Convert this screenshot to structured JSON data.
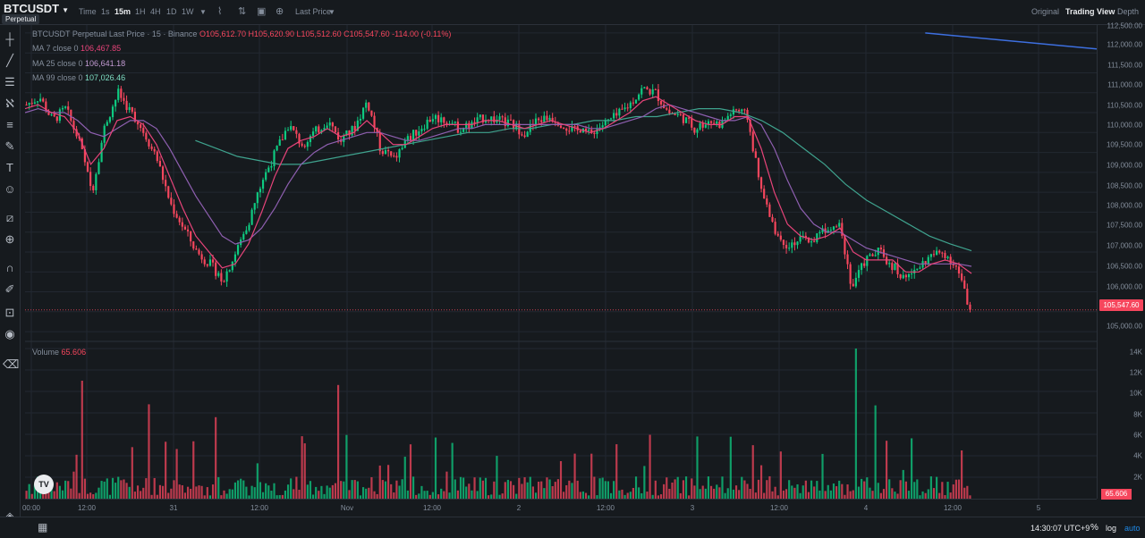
{
  "header": {
    "symbol": "BTCUSDT",
    "badge": "Perpetual",
    "timeframes": [
      {
        "label": "Time",
        "active": false
      },
      {
        "label": "1s",
        "active": false
      },
      {
        "label": "15m",
        "active": true
      },
      {
        "label": "1H",
        "active": false
      },
      {
        "label": "4H",
        "active": false
      },
      {
        "label": "1D",
        "active": false
      },
      {
        "label": "1W",
        "active": false
      }
    ],
    "price_mode": "Last Price",
    "views": [
      {
        "label": "Original",
        "active": false
      },
      {
        "label": "Trading View",
        "active": true
      },
      {
        "label": "Depth",
        "active": false
      }
    ]
  },
  "toolbar_icons": [
    "crosshair-icon",
    "trendline-icon",
    "fib-icon",
    "pattern-icon",
    "measure-lines-icon",
    "brush-icon",
    "text-icon",
    "emoji-icon",
    "ruler-icon",
    "zoom-in-icon",
    "magnet-icon",
    "lock-drawing-icon",
    "lock-icon",
    "eye-icon",
    "trash-icon"
  ],
  "legend": {
    "title": "BTCUSDT Perpetual Last Price · 15 · Binance",
    "ohlc": "O105,612.70 H105,620.90 L105,512.60 C105,547.60 -114.00 (-0.11%)",
    "ma7_label": "MA 7 close 0",
    "ma7_value": "106,467.85",
    "ma25_label": "MA 25 close 0",
    "ma25_value": "106,641.18",
    "ma99_label": "MA 99 close 0",
    "ma99_value": "107,026.46",
    "volume_label": "Volume",
    "volume_value": "65.606"
  },
  "price_axis": [
    "112,500.00",
    "112,000.00",
    "111,500.00",
    "111,000.00",
    "110,500.00",
    "110,000.00",
    "109,500.00",
    "109,000.00",
    "108,500.00",
    "108,000.00",
    "107,500.00",
    "107,000.00",
    "106,500.00",
    "106,000.00",
    "105,000.00"
  ],
  "volume_axis": [
    "14K",
    "12K",
    "10K",
    "8K",
    "6K",
    "4K",
    "2K"
  ],
  "last_price_tag": "105,547.60",
  "last_volume_tag": "65.606",
  "time_axis": [
    "00:00",
    "12:00",
    "31",
    "12:00",
    "Nov",
    "12:00",
    "2",
    "12:00",
    "3",
    "12:00",
    "4",
    "12:00",
    "5"
  ],
  "footer": {
    "clock": "14:30:07 UTC+9",
    "percent": "%",
    "log": "log",
    "auto": "auto"
  },
  "colors": {
    "up": "#0ecb81",
    "down": "#f6465d",
    "ma7": "#e8447a",
    "ma25": "#8e5fb0",
    "ma99": "#3fa38e",
    "trendline": "#3d6fe0"
  },
  "chart_data": {
    "type": "candlestick",
    "price_range": [
      104800,
      112700
    ],
    "volume_range": [
      0,
      14500
    ],
    "x_labels": [
      "00:00",
      "12:00",
      "31",
      "12:00",
      "Nov",
      "12:00",
      "2",
      "12:00",
      "3",
      "12:00",
      "4",
      "12:00",
      "5"
    ],
    "price_path": [
      110700,
      110900,
      110300,
      110600,
      109800,
      108500,
      110200,
      111000,
      110500,
      110000,
      109300,
      108200,
      107600,
      107000,
      106700,
      106300,
      107000,
      107800,
      108800,
      109500,
      110200,
      109700,
      110000,
      110300,
      109800,
      110100,
      110800,
      109600,
      109300,
      109800,
      110100,
      110400,
      110300,
      110100,
      110200,
      110400,
      110300,
      110200,
      110000,
      110300,
      110400,
      110200,
      110000,
      110000,
      110200,
      110400,
      110700,
      111100,
      111000,
      110500,
      110400,
      110100,
      110300,
      110200,
      110600,
      110400,
      108600,
      107600,
      107200,
      107300,
      107300,
      107600,
      107800,
      106100,
      106800,
      107000,
      106700,
      106300,
      106600,
      106900,
      107000,
      106600,
      105547
    ],
    "ma7_path": [
      110600,
      110700,
      110500,
      110400,
      110000,
      109200,
      109600,
      110300,
      110400,
      110200,
      109700,
      108900,
      108100,
      107400,
      107000,
      106600,
      106700,
      107200,
      108000,
      108900,
      109600,
      109800,
      109900,
      110100,
      109900,
      110000,
      110300,
      110000,
      109700,
      109700,
      109900,
      110100,
      110200,
      110200,
      110200,
      110300,
      110300,
      110200,
      110100,
      110200,
      110300,
      110200,
      110100,
      110000,
      110100,
      110300,
      110500,
      110800,
      110900,
      110700,
      110500,
      110300,
      110200,
      110200,
      110400,
      110400,
      109600,
      108500,
      107700,
      107400,
      107300,
      107400,
      107600,
      107000,
      106800,
      106800,
      106800,
      106500,
      106500,
      106700,
      106800,
      106700,
      106460
    ],
    "ma25_path": [
      110500,
      110600,
      110500,
      110500,
      110300,
      110000,
      109900,
      110100,
      110300,
      110300,
      110100,
      109600,
      109000,
      108400,
      107900,
      107400,
      107200,
      107300,
      107600,
      108100,
      108700,
      109200,
      109500,
      109700,
      109800,
      109900,
      110000,
      110000,
      109900,
      109800,
      109800,
      109900,
      110000,
      110100,
      110100,
      110200,
      110200,
      110200,
      110200,
      110200,
      110200,
      110200,
      110200,
      110100,
      110100,
      110200,
      110300,
      110400,
      110600,
      110700,
      110600,
      110500,
      110400,
      110300,
      110300,
      110400,
      110200,
      109600,
      108800,
      108100,
      107700,
      107500,
      107500,
      107300,
      107100,
      107000,
      106900,
      106800,
      106700,
      106700,
      106700,
      106700,
      106640
    ],
    "ma99_path": [
      109800,
      109600,
      109400,
      109300,
      109200,
      109200,
      109300,
      109400,
      109500,
      109600,
      109700,
      109800,
      109900,
      110000,
      110000,
      110100,
      110100,
      110200,
      110200,
      110300,
      110300,
      110400,
      110400,
      110500,
      110600,
      110600,
      110500,
      110300,
      110000,
      109600,
      109200,
      108700,
      108300,
      108000,
      107700,
      107400,
      107200,
      107030
    ],
    "trendline": [
      [
        0.84,
        112500
      ],
      [
        1.0,
        112100
      ]
    ],
    "last_price": 105547.6,
    "volume_last": 65.606,
    "volume_spikes": [
      [
        0.06,
        11000
      ],
      [
        0.13,
        8800
      ],
      [
        0.2,
        7600
      ],
      [
        0.33,
        10600
      ],
      [
        0.45,
        5200
      ],
      [
        0.58,
        4200
      ],
      [
        0.71,
        5800
      ],
      [
        0.8,
        4400
      ],
      [
        0.88,
        14000
      ],
      [
        0.9,
        8700
      ],
      [
        0.99,
        4500
      ]
    ]
  }
}
